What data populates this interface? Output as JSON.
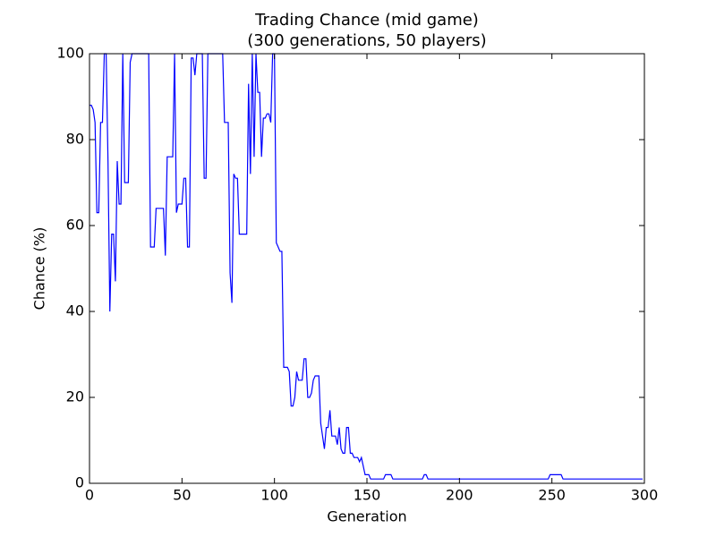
{
  "chart_data": {
    "type": "line",
    "title": "Trading Chance (mid game)",
    "subtitle": "(300 generations, 50 players)",
    "x_label": "Generation",
    "y_label": "Chance (%)",
    "xlim": [
      0,
      300
    ],
    "ylim": [
      0,
      100
    ],
    "xticks": [
      0,
      50,
      100,
      150,
      200,
      250,
      300
    ],
    "yticks": [
      0,
      20,
      40,
      60,
      80,
      100
    ],
    "x": [
      0,
      1,
      2,
      3,
      4,
      5,
      6,
      7,
      8,
      9,
      10,
      11,
      12,
      13,
      14,
      15,
      16,
      17,
      18,
      19,
      20,
      21,
      22,
      23,
      24,
      25,
      26,
      27,
      28,
      29,
      30,
      31,
      32,
      33,
      34,
      35,
      36,
      37,
      38,
      39,
      40,
      41,
      42,
      43,
      44,
      45,
      46,
      47,
      48,
      49,
      50,
      51,
      52,
      53,
      54,
      55,
      56,
      57,
      58,
      59,
      60,
      61,
      62,
      63,
      64,
      65,
      66,
      67,
      68,
      69,
      70,
      71,
      72,
      73,
      74,
      75,
      76,
      77,
      78,
      79,
      80,
      81,
      82,
      83,
      84,
      85,
      86,
      87,
      88,
      89,
      90,
      91,
      92,
      93,
      94,
      95,
      96,
      97,
      98,
      99,
      100,
      101,
      102,
      103,
      104,
      105,
      106,
      107,
      108,
      109,
      110,
      111,
      112,
      113,
      114,
      115,
      116,
      117,
      118,
      119,
      120,
      121,
      122,
      123,
      124,
      125,
      126,
      127,
      128,
      129,
      130,
      131,
      132,
      133,
      134,
      135,
      136,
      137,
      138,
      139,
      140,
      141,
      142,
      143,
      144,
      145,
      146,
      147,
      148,
      149,
      150,
      151,
      152,
      159,
      160,
      163,
      164,
      180,
      181,
      182,
      183,
      248,
      249,
      255,
      256,
      299
    ],
    "series": [
      {
        "name": "Trading chance",
        "color": "#0000ff",
        "values": [
          88,
          88,
          87,
          84,
          63,
          63,
          84,
          84,
          100,
          100,
          75,
          40,
          58,
          58,
          47,
          75,
          65,
          65,
          100,
          70,
          70,
          70,
          98,
          100,
          100,
          100,
          100,
          100,
          100,
          100,
          100,
          100,
          100,
          55,
          55,
          55,
          64,
          64,
          64,
          64,
          64,
          53,
          76,
          76,
          76,
          76,
          100,
          63,
          65,
          65,
          65,
          71,
          71,
          55,
          55,
          99,
          99,
          95,
          100,
          100,
          100,
          100,
          71,
          71,
          100,
          100,
          100,
          100,
          100,
          100,
          100,
          100,
          100,
          84,
          84,
          84,
          49,
          42,
          72,
          71,
          71,
          58,
          58,
          58,
          58,
          58,
          93,
          72,
          100,
          76,
          100,
          91,
          91,
          76,
          85,
          85,
          86,
          86,
          84,
          100,
          100,
          56,
          55,
          54,
          54,
          27,
          27,
          27,
          26,
          18,
          18,
          20,
          26,
          24,
          24,
          24,
          29,
          29,
          20,
          20,
          21,
          24,
          25,
          25,
          25,
          14,
          11,
          8,
          13,
          13,
          17,
          11,
          11,
          11,
          9,
          13,
          8,
          7,
          7,
          13,
          13,
          7,
          7,
          6,
          6,
          6,
          5,
          6,
          4,
          2,
          2,
          2,
          1,
          1,
          2,
          2,
          1,
          1,
          2,
          2,
          1,
          1,
          2,
          2,
          1,
          1
        ]
      }
    ]
  }
}
